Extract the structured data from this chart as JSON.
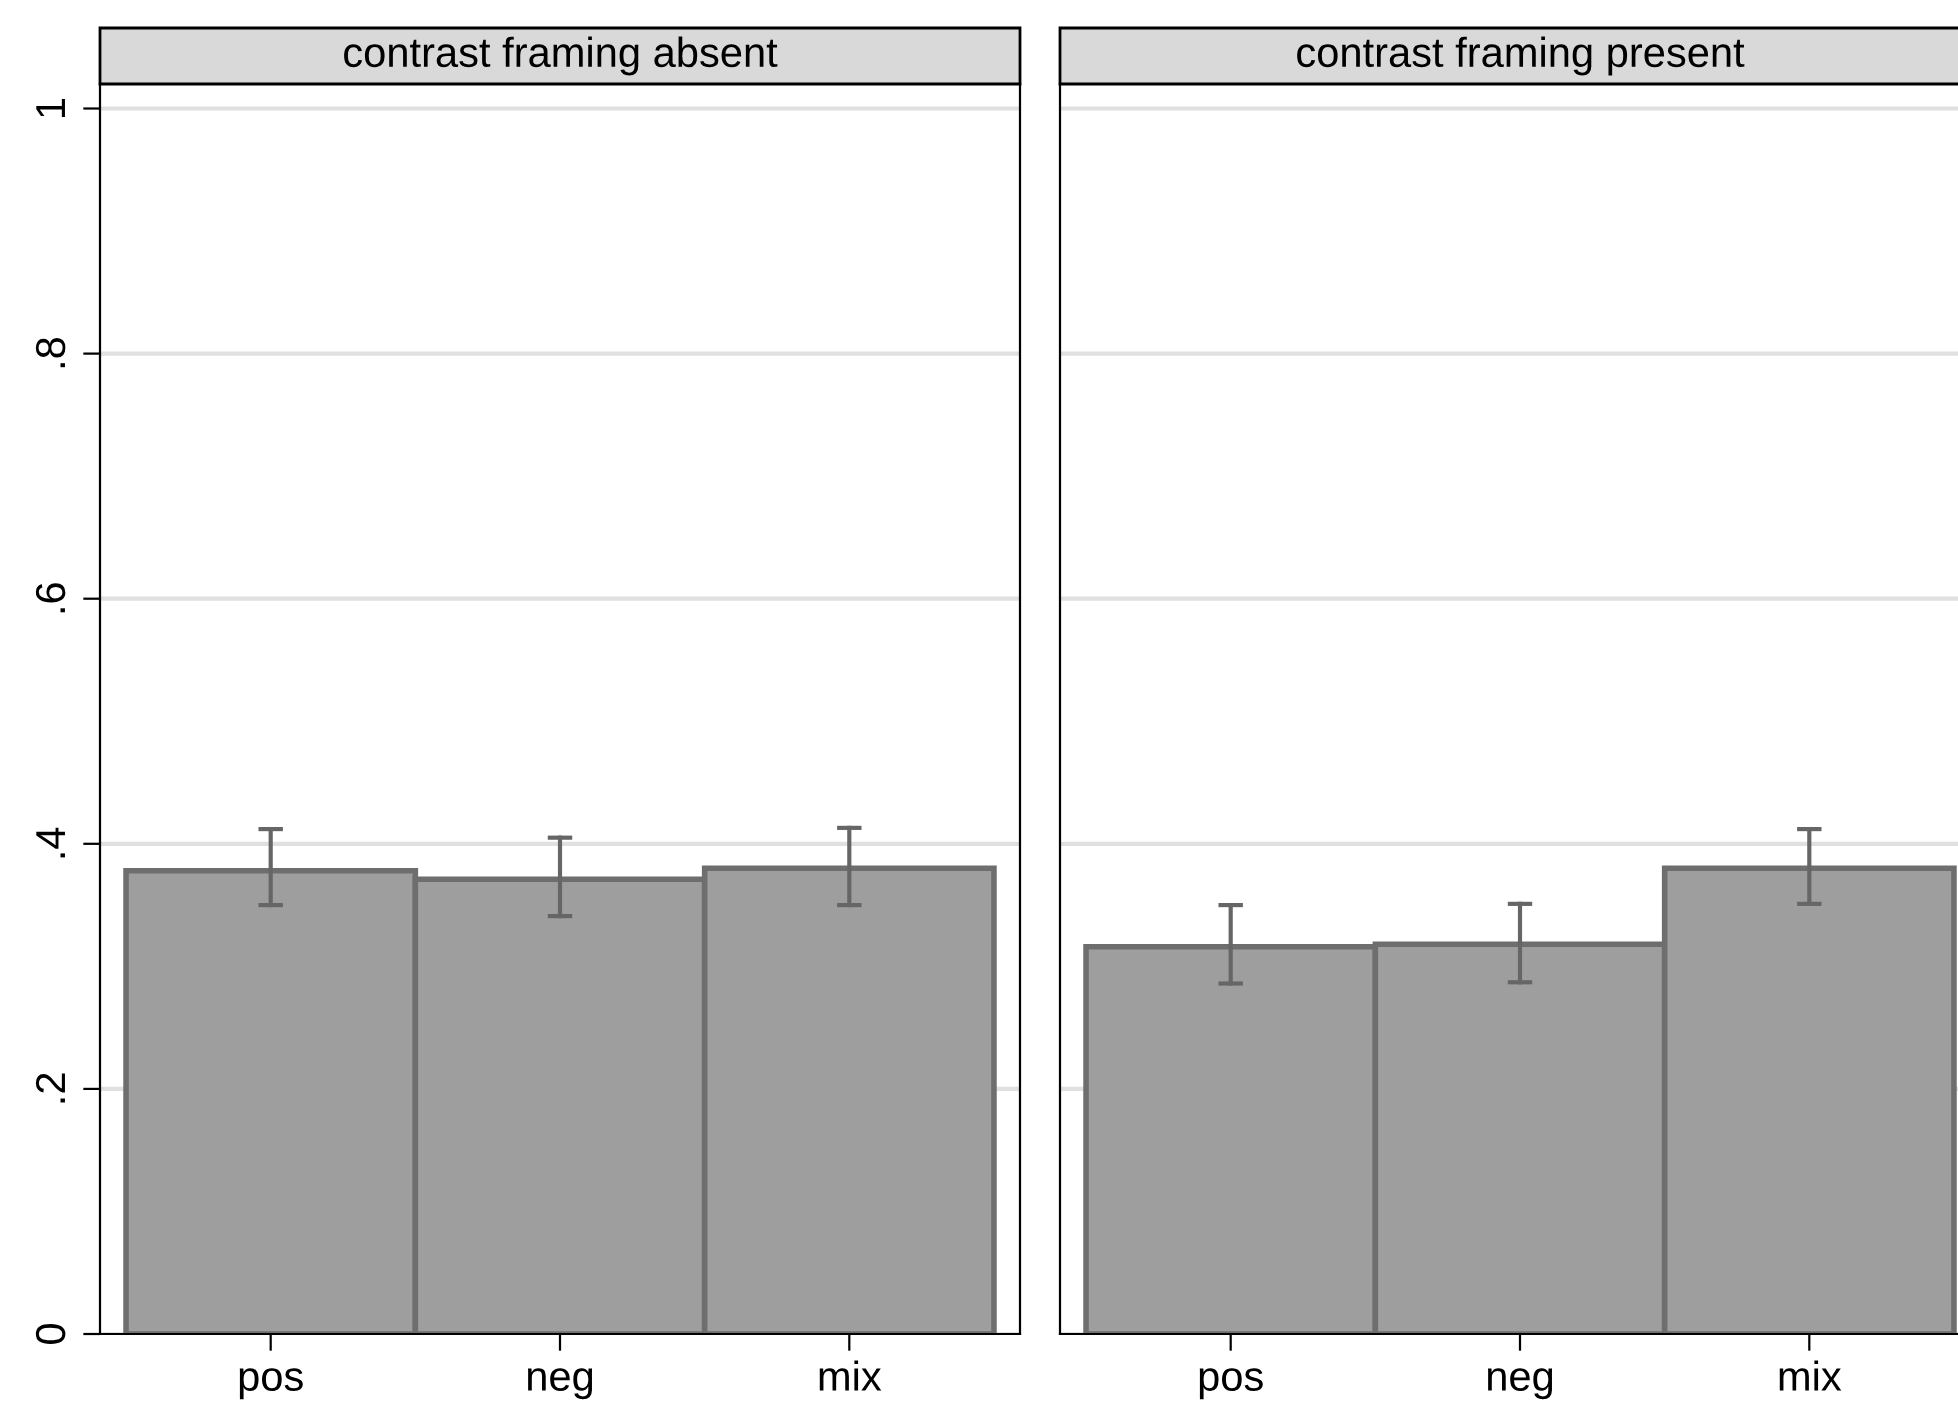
{
  "chart_data": [
    {
      "type": "bar",
      "title": "contrast framing absent",
      "categories": [
        "pos",
        "neg",
        "mix"
      ],
      "values": [
        0.378,
        0.371,
        0.38
      ],
      "errors": [
        [
          0.35,
          0.412
        ],
        [
          0.341,
          0.405
        ],
        [
          0.35,
          0.413
        ]
      ],
      "color": "#9e9e9e",
      "ylim": [
        0,
        1.02
      ],
      "yticks": [
        0,
        {
          "value": 0.2,
          "label": ".2"
        },
        {
          "value": 0.4,
          "label": ".4"
        },
        {
          "value": 0.6,
          "label": ".6"
        },
        {
          "value": 0.8,
          "label": ".8"
        },
        1
      ],
      "grid": "y"
    },
    {
      "type": "bar",
      "title": "contrast framing present",
      "categories": [
        "pos",
        "neg",
        "mix"
      ],
      "values": [
        0.316,
        0.318,
        0.38
      ],
      "errors": [
        [
          0.286,
          0.35
        ],
        [
          0.287,
          0.351
        ],
        [
          0.351,
          0.412
        ]
      ],
      "color": "#9e9e9e",
      "ylim": [
        0,
        1.02
      ],
      "yticks": [
        {
          "value": 0,
          "label": null
        },
        {
          "value": 0.2,
          "label": null
        },
        {
          "value": 0.4,
          "label": null
        },
        {
          "value": 0.6,
          "label": null
        },
        {
          "value": 0.8,
          "label": null
        },
        {
          "value": 1,
          "label": null
        }
      ],
      "grid": "y",
      "tick_labels": "x"
    }
  ]
}
